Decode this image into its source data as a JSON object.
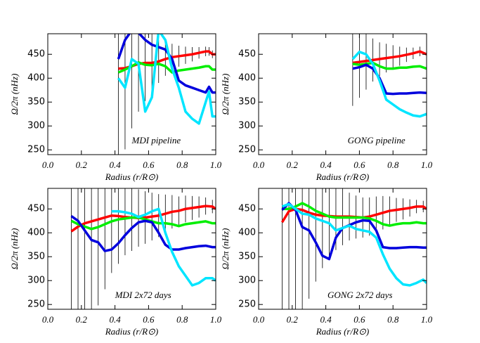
{
  "chart_data": [
    {
      "type": "line",
      "annotation": "MDI pipeline",
      "xlabel": "Radius (r/R⊙)",
      "ylabel": "Ω/2π (nHz)",
      "x": [
        0.42,
        0.46,
        0.5,
        0.54,
        0.58,
        0.62,
        0.66,
        0.7,
        0.74,
        0.78,
        0.82,
        0.86,
        0.9,
        0.94,
        0.96,
        0.98,
        1.0
      ],
      "series": [
        {
          "color": "#ff0000",
          "values": [
            420,
            421,
            425,
            430,
            432,
            432,
            435,
            440,
            444,
            446,
            448,
            450,
            453,
            456,
            456,
            450,
            450
          ],
          "errors": [
            250,
            170,
            130,
            100,
            80,
            60,
            45,
            35,
            28,
            22,
            18,
            15,
            12,
            10,
            9,
            8,
            7
          ]
        },
        {
          "color": "#00ee00",
          "values": [
            412,
            418,
            425,
            433,
            428,
            427,
            430,
            425,
            412,
            416,
            418,
            420,
            422,
            425,
            425,
            418,
            418
          ]
        },
        {
          "color": "#0000dd",
          "values": [
            440,
            480,
            500,
            495,
            480,
            470,
            465,
            460,
            440,
            395,
            385,
            380,
            375,
            370,
            382,
            370,
            370
          ]
        },
        {
          "color": "#00e5ff",
          "values": [
            400,
            380,
            440,
            430,
            330,
            360,
            500,
            480,
            420,
            380,
            330,
            315,
            305,
            350,
            372,
            320,
            320
          ]
        }
      ],
      "error_color": "#000000",
      "xlim": [
        0,
        1
      ],
      "ylim": [
        240,
        493
      ],
      "xticks": [
        {
          "value": 0,
          "label": "0.0"
        },
        0.2,
        0.4,
        0.6,
        0.8,
        {
          "value": 1,
          "label": "1.0"
        }
      ],
      "yticks": [
        250,
        300,
        350,
        400,
        450
      ]
    },
    {
      "type": "line",
      "annotation": "GONG pipeline",
      "xlabel": "Radius (r/R⊙)",
      "ylabel": "Ω/2π (nHz)",
      "x": [
        0.56,
        0.6,
        0.64,
        0.68,
        0.72,
        0.76,
        0.8,
        0.84,
        0.88,
        0.92,
        0.96,
        1.0
      ],
      "series": [
        {
          "color": "#ff0000",
          "values": [
            432,
            434,
            436,
            438,
            440,
            442,
            444,
            446,
            449,
            452,
            456,
            450
          ],
          "errors": [
            90,
            75,
            60,
            45,
            35,
            30,
            25,
            20,
            15,
            12,
            10,
            8
          ]
        },
        {
          "color": "#00ee00",
          "values": [
            430,
            428,
            430,
            432,
            425,
            420,
            420,
            422,
            422,
            424,
            425,
            420
          ]
        },
        {
          "color": "#0000dd",
          "values": [
            420,
            423,
            428,
            420,
            400,
            368,
            367,
            368,
            368,
            369,
            370,
            369
          ]
        },
        {
          "color": "#00e5ff",
          "values": [
            440,
            455,
            450,
            430,
            395,
            355,
            345,
            335,
            328,
            322,
            320,
            325
          ]
        }
      ],
      "error_color": "#000000",
      "xlim": [
        0,
        1
      ],
      "ylim": [
        240,
        493
      ],
      "xticks": [
        {
          "value": 0,
          "label": "0.0"
        },
        0.2,
        0.4,
        0.6,
        0.8,
        {
          "value": 1,
          "label": "1.0"
        }
      ],
      "yticks": [
        250,
        300,
        350,
        400,
        450
      ]
    },
    {
      "type": "line",
      "annotation": "MDI 2x72 days",
      "xlabel": "Radius (r/R⊙)",
      "ylabel": "Ω/2π (nHz)",
      "x": [
        0.14,
        0.18,
        0.22,
        0.26,
        0.3,
        0.34,
        0.38,
        0.42,
        0.46,
        0.5,
        0.54,
        0.58,
        0.62,
        0.66,
        0.7,
        0.74,
        0.78,
        0.82,
        0.86,
        0.9,
        0.94,
        0.98,
        1.0
      ],
      "series": [
        {
          "color": "#ff0000",
          "values": [
            403,
            413,
            420,
            424,
            428,
            432,
            436,
            435,
            433,
            432,
            431,
            432,
            434,
            436,
            440,
            444,
            446,
            450,
            452,
            454,
            456,
            455,
            450
          ],
          "errors": [
            260,
            240,
            220,
            200,
            180,
            150,
            120,
            100,
            80,
            70,
            60,
            55,
            50,
            45,
            40,
            35,
            30,
            28,
            25,
            22,
            18,
            14,
            10
          ]
        },
        {
          "color": "#00ee00",
          "values": [
            425,
            418,
            413,
            408,
            412,
            418,
            424,
            428,
            430,
            432,
            432,
            428,
            424,
            420,
            420,
            418,
            414,
            418,
            420,
            422,
            424,
            420,
            420
          ]
        },
        {
          "color": "#0000dd",
          "values": [
            435,
            425,
            405,
            385,
            380,
            362,
            365,
            378,
            395,
            410,
            422,
            425,
            422,
            400,
            375,
            365,
            365,
            368,
            370,
            372,
            373,
            370,
            370
          ]
        },
        {
          "color": "#00e5ff",
          "values": [
            null,
            null,
            null,
            null,
            null,
            null,
            445,
            445,
            443,
            440,
            433,
            438,
            445,
            450,
            400,
            360,
            330,
            310,
            290,
            295,
            305,
            305,
            300
          ]
        }
      ],
      "error_color": "#000000",
      "xlim": [
        0,
        1
      ],
      "ylim": [
        240,
        493
      ],
      "xticks": [
        {
          "value": 0,
          "label": "0.0"
        },
        0.2,
        0.4,
        0.6,
        0.8,
        {
          "value": 1,
          "label": "1.0"
        }
      ],
      "yticks": [
        250,
        300,
        350,
        400,
        450
      ]
    },
    {
      "type": "line",
      "annotation": "GONG 2x72 days",
      "xlabel": "Radius (r/R⊙)",
      "ylabel": "Ω/2π (nHz)",
      "x": [
        0.14,
        0.18,
        0.22,
        0.26,
        0.3,
        0.34,
        0.38,
        0.42,
        0.46,
        0.5,
        0.54,
        0.58,
        0.62,
        0.66,
        0.7,
        0.74,
        0.78,
        0.82,
        0.86,
        0.9,
        0.94,
        0.98,
        1.0
      ],
      "series": [
        {
          "color": "#ff0000",
          "values": [
            422,
            445,
            450,
            448,
            442,
            438,
            436,
            435,
            434,
            434,
            434,
            433,
            432,
            434,
            438,
            442,
            446,
            448,
            450,
            452,
            455,
            455,
            450
          ],
          "errors": [
            260,
            250,
            230,
            210,
            180,
            140,
            110,
            90,
            70,
            60,
            50,
            45,
            42,
            40,
            38,
            35,
            30,
            25,
            22,
            18,
            14,
            12,
            10
          ]
        },
        {
          "color": "#00ee00",
          "values": [
            450,
            450,
            455,
            462,
            455,
            446,
            440,
            434,
            432,
            432,
            432,
            432,
            432,
            430,
            425,
            418,
            415,
            418,
            420,
            420,
            422,
            420,
            420
          ]
        },
        {
          "color": "#0000dd",
          "values": [
            448,
            462,
            448,
            412,
            405,
            380,
            352,
            345,
            390,
            410,
            416,
            422,
            426,
            425,
            405,
            370,
            368,
            368,
            369,
            370,
            370,
            369,
            369
          ]
        },
        {
          "color": "#00e5ff",
          "values": [
            455,
            460,
            450,
            440,
            438,
            430,
            425,
            420,
            405,
            410,
            415,
            408,
            405,
            402,
            390,
            355,
            325,
            305,
            292,
            290,
            295,
            302,
            295
          ]
        }
      ],
      "error_color": "#000000",
      "xlim": [
        0,
        1
      ],
      "ylim": [
        240,
        493
      ],
      "xticks": [
        {
          "value": 0,
          "label": "0.0"
        },
        0.2,
        0.4,
        0.6,
        0.8,
        {
          "value": 1,
          "label": "1.0"
        }
      ],
      "yticks": [
        250,
        300,
        350,
        400,
        450
      ]
    }
  ]
}
